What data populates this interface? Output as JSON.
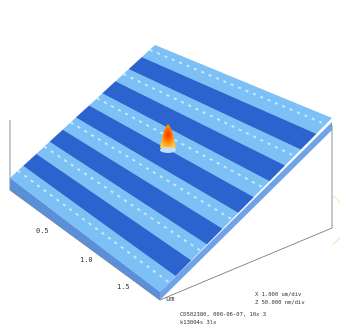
{
  "axes": {
    "x_ticks": [
      "0.5",
      "1.0",
      "1.5"
    ],
    "unit": "um"
  },
  "scale": {
    "x": "X  1.000 um/div",
    "z": "Z  50.000 nm/div"
  },
  "footer": {
    "line1": "CD502380, 000-06-07, 10x 3",
    "line2": "k13004s 3lx"
  }
}
